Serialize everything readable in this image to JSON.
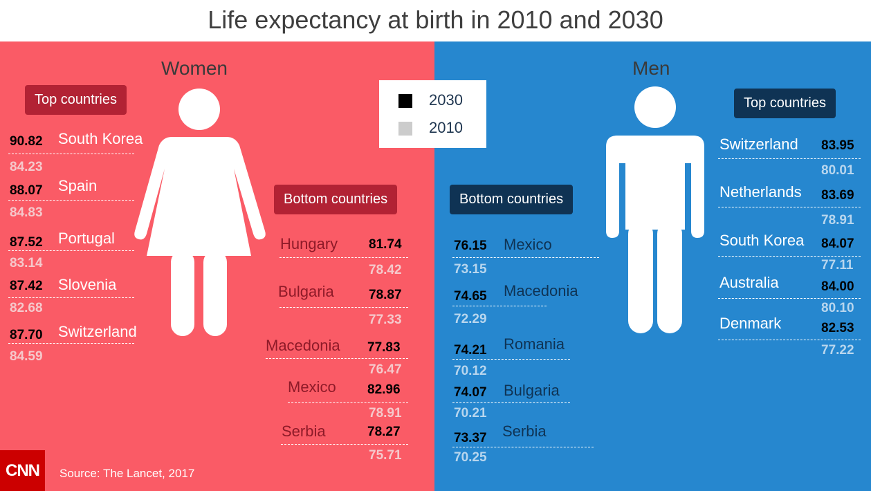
{
  "title": "Life expectancy at birth in 2010 and 2030",
  "labels": {
    "women": "Women",
    "men": "Men",
    "top_countries": "Top countries",
    "bottom_countries": "Bottom countries",
    "source": "Source: The Lancet, 2017",
    "logo": "CNN"
  },
  "colors": {
    "women_bg": "#fa5b66",
    "men_bg": "#2687cf",
    "women_badge": "#b22234",
    "men_badge": "#0f3354",
    "value_2030": "#000000",
    "value_2010": "#cccccc"
  },
  "chart_data": {
    "type": "table",
    "title": "Life expectancy at birth in 2010 and 2030",
    "legend": [
      "2030",
      "2010"
    ],
    "women": {
      "top": [
        {
          "country": "South Korea",
          "y2030": "90.82",
          "y2010": "84.23"
        },
        {
          "country": "Spain",
          "y2030": "88.07",
          "y2010": "84.83"
        },
        {
          "country": "Portugal",
          "y2030": "87.52",
          "y2010": "83.14"
        },
        {
          "country": "Slovenia",
          "y2030": "87.42",
          "y2010": "82.68"
        },
        {
          "country": "Switzerland",
          "y2030": "87.70",
          "y2010": "84.59"
        }
      ],
      "bottom": [
        {
          "country": "Hungary",
          "y2030": "81.74",
          "y2010": "78.42"
        },
        {
          "country": "Bulgaria",
          "y2030": "78.87",
          "y2010": "77.33"
        },
        {
          "country": "Macedonia",
          "y2030": "77.83",
          "y2010": "76.47"
        },
        {
          "country": "Mexico",
          "y2030": "82.96",
          "y2010": "78.91"
        },
        {
          "country": "Serbia",
          "y2030": "78.27",
          "y2010": "75.71"
        }
      ]
    },
    "men": {
      "top": [
        {
          "country": "Switzerland",
          "y2030": "83.95",
          "y2010": "80.01"
        },
        {
          "country": "Netherlands",
          "y2030": "83.69",
          "y2010": "78.91"
        },
        {
          "country": "South Korea",
          "y2030": "84.07",
          "y2010": "77.11"
        },
        {
          "country": "Australia",
          "y2030": "84.00",
          "y2010": "80.10"
        },
        {
          "country": "Denmark",
          "y2030": "82.53",
          "y2010": "77.22"
        }
      ],
      "bottom": [
        {
          "country": "Mexico",
          "y2030": "76.15",
          "y2010": "73.15"
        },
        {
          "country": "Macedonia",
          "y2030": "74.65",
          "y2010": "72.29"
        },
        {
          "country": "Romania",
          "y2030": "74.21",
          "y2010": "70.12"
        },
        {
          "country": "Bulgaria",
          "y2030": "74.07",
          "y2010": "70.21"
        },
        {
          "country": "Serbia",
          "y2030": "73.37",
          "y2010": "70.25"
        }
      ]
    }
  }
}
